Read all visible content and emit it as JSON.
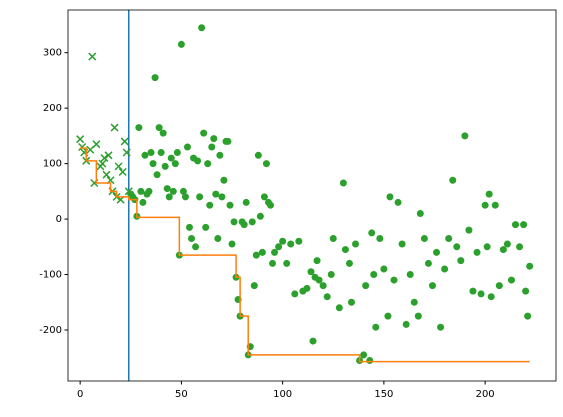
{
  "chart_data": {
    "type": "scatter",
    "xlim": [
      -6,
      235
    ],
    "ylim": [
      -292,
      377
    ],
    "xticks": [
      0,
      50,
      100,
      150,
      200
    ],
    "yticks": [
      -200,
      -100,
      0,
      100,
      200,
      300
    ],
    "vline": {
      "x": 24,
      "color": "#1f77b4"
    },
    "series": [
      {
        "marker": "x",
        "color": "#2ca02c",
        "x": [
          0,
          1,
          2,
          3,
          5,
          6,
          7,
          8,
          10,
          11,
          12,
          13,
          14,
          15,
          16,
          17,
          18,
          19,
          20,
          21,
          22,
          23,
          24
        ],
        "values": [
          144,
          130,
          120,
          105,
          125,
          293,
          65,
          135,
          95,
          100,
          110,
          80,
          115,
          70,
          50,
          165,
          40,
          95,
          35,
          85,
          140,
          120,
          50
        ]
      },
      {
        "marker": "o",
        "color": "#2ca02c",
        "x": [
          25,
          26,
          27,
          28,
          29,
          30,
          31,
          32,
          33,
          34,
          35,
          36,
          37,
          38,
          39,
          40,
          41,
          42,
          43,
          44,
          45,
          46,
          47,
          48,
          49,
          50,
          51,
          52,
          53,
          54,
          55,
          56,
          57,
          58,
          59,
          60,
          61,
          62,
          63,
          64,
          65,
          66,
          67,
          68,
          69,
          70,
          71,
          72,
          73,
          74,
          75,
          76,
          77,
          78,
          79,
          80,
          81,
          82,
          83,
          84,
          85,
          86,
          87,
          88,
          89,
          90,
          91,
          92,
          93,
          94,
          95,
          96,
          98,
          100,
          102,
          104,
          106,
          108,
          110,
          112,
          114,
          115,
          116,
          117,
          118,
          120,
          122,
          124,
          125,
          128,
          130,
          131,
          133,
          134,
          136,
          138,
          140,
          141,
          143,
          144,
          145,
          146,
          148,
          150,
          152,
          153,
          155,
          157,
          159,
          161,
          163,
          165,
          167,
          168,
          170,
          172,
          174,
          176,
          178,
          180,
          182,
          184,
          186,
          188,
          190,
          192,
          194,
          196,
          198,
          200,
          201,
          202,
          203,
          205,
          207,
          209,
          211,
          213,
          215,
          217,
          219,
          220,
          221,
          222
        ],
        "values": [
          45,
          40,
          35,
          5,
          165,
          50,
          30,
          115,
          45,
          50,
          120,
          100,
          255,
          80,
          165,
          120,
          155,
          95,
          55,
          40,
          110,
          50,
          100,
          120,
          -65,
          315,
          50,
          40,
          130,
          -15,
          -35,
          110,
          -50,
          105,
          40,
          345,
          155,
          -15,
          100,
          25,
          130,
          145,
          45,
          -35,
          115,
          40,
          70,
          140,
          140,
          25,
          -45,
          -5,
          -105,
          -145,
          -175,
          -5,
          -10,
          30,
          -245,
          -230,
          -5,
          -120,
          -65,
          115,
          5,
          -60,
          40,
          100,
          30,
          25,
          -80,
          -60,
          -50,
          -40,
          -80,
          -45,
          -135,
          -40,
          -130,
          -125,
          -95,
          -220,
          -105,
          -75,
          -110,
          -120,
          -140,
          -100,
          -35,
          -160,
          65,
          -55,
          -80,
          -150,
          -45,
          -255,
          -245,
          -120,
          -255,
          -25,
          -100,
          -195,
          -35,
          -90,
          -175,
          40,
          -110,
          30,
          -45,
          -190,
          -100,
          -150,
          -175,
          10,
          -35,
          -80,
          -120,
          -60,
          -195,
          -90,
          -35,
          70,
          -50,
          -75,
          150,
          -20,
          -130,
          -60,
          -135,
          25,
          -50,
          45,
          -140,
          25,
          -120,
          -55,
          -45,
          -110,
          -10,
          -50,
          -10,
          -130,
          -175,
          -85
        ]
      },
      {
        "drawstyle": "steps-post",
        "color": "#ff7f0e",
        "x": [
          0,
          3,
          8,
          15,
          18,
          24,
          28,
          49,
          77,
          79,
          83,
          138,
          222
        ],
        "values": [
          128,
          105,
          65,
          50,
          40,
          35,
          3,
          -65,
          -105,
          -175,
          -245,
          -257,
          -257
        ]
      }
    ]
  }
}
